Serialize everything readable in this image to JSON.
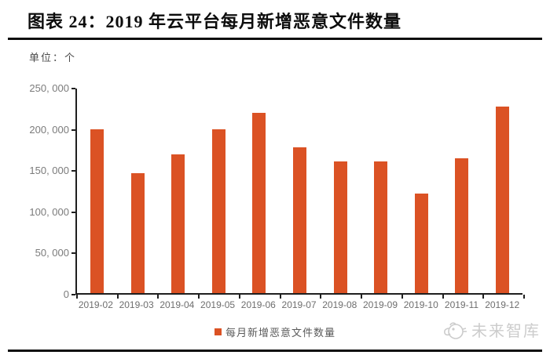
{
  "header": {
    "title": "图表 24：2019 年云平台每月新增恶意文件数量"
  },
  "chart": {
    "unit_label": "单位：个",
    "legend": {
      "label": "每月新增恶意文件数量"
    }
  },
  "watermark": {
    "brand": "未来智库"
  },
  "colors": {
    "bar": "#DB5224",
    "axis": "#1f1f1f",
    "y_tick_label": "#7b7b7b",
    "x_tick_label": "#6e6e6e",
    "legend_text": "#5a5a5a",
    "watermark": "#cccccc",
    "title": "#0d0d0d"
  },
  "chart_data": {
    "type": "bar",
    "title": "2019 年云平台每月新增恶意文件数量",
    "unit": "个",
    "series_name": "每月新增恶意文件数量",
    "categories": [
      "2019-02",
      "2019-03",
      "2019-04",
      "2019-05",
      "2019-06",
      "2019-07",
      "2019-08",
      "2019-09",
      "2019-10",
      "2019-11",
      "2019-12"
    ],
    "values": [
      200000,
      147000,
      170000,
      200000,
      220000,
      178000,
      161000,
      161000,
      122000,
      165000,
      228000
    ],
    "xlabel": "",
    "ylabel": "单位：个",
    "ylim": [
      0,
      250000
    ],
    "ytick_interval": 50000,
    "ytick_labels_bottom_to_top": [
      "0",
      "50, 000",
      "100, 000",
      "150, 000",
      "200, 000",
      "250, 000"
    ],
    "grid": false,
    "legend_position": "bottom-center",
    "bar_color": "#DB5224"
  }
}
